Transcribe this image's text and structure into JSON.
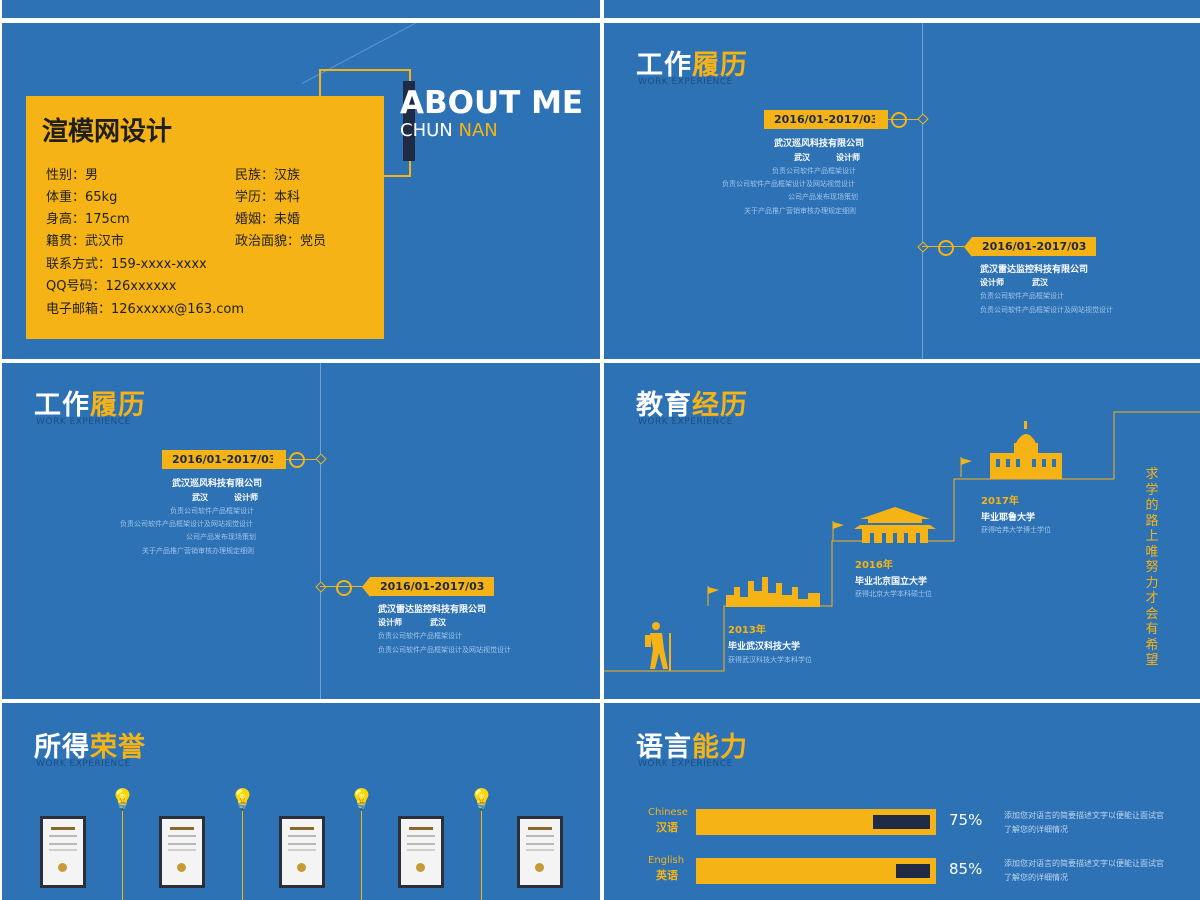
{
  "about": {
    "name": "渲模网设计",
    "heading": "ABOUT ME",
    "sub_first": "CHUN",
    "sub_last": "NAN",
    "left_fields": [
      "性别：男",
      "体重：65kg",
      "身高：175cm",
      "籍贯：武汉市",
      "联系方式：159-xxxx-xxxx",
      "QQ号码：126xxxxxx",
      "电子邮箱：126xxxxx@163.com"
    ],
    "right_fields": [
      "民族：汉族",
      "学历：本科",
      "婚姻：未婚",
      "政治面貌：党员"
    ]
  },
  "work": {
    "title_a": "工作",
    "title_b": "履历",
    "subtitle": "WORK EXPERIENCE",
    "entries": [
      {
        "date": "2016/01-2017/03",
        "company": "武汉巡风科技有限公司",
        "city": "武汉",
        "role": "设计师",
        "lines": [
          "负责公司软件产品框架设计",
          "负责公司软件产品框架设计及网站视觉设计",
          "公司产品发布现场策划",
          "关于产品推广营销审核办理规定细则"
        ]
      },
      {
        "date": "2016/01-2017/03",
        "company": "武汉雷达监控科技有限公司",
        "city": "武汉",
        "role": "设计师",
        "lines": [
          "负责公司软件产品框架设计",
          "负责公司软件产品框架设计及网站视觉设计"
        ]
      }
    ]
  },
  "education": {
    "title_a": "教育",
    "title_b": "经历",
    "subtitle": "WORK EXPERIENCE",
    "motto": "求学的路上唯努力才会有希望",
    "steps": [
      {
        "year": "2013年",
        "school": "毕业武汉科技大学",
        "desc": "获得武汉科技大学本科学位"
      },
      {
        "year": "2016年",
        "school": "毕业北京国立大学",
        "desc": "获得北京大学本科硕士位"
      },
      {
        "year": "2017年",
        "school": "毕业耶鲁大学",
        "desc": "获得哈弗大学博士学位"
      }
    ]
  },
  "honors": {
    "title_a": "所得",
    "title_b": "荣誉",
    "subtitle": "WORK EXPERIENCE",
    "cert_count": 5
  },
  "language": {
    "title_a": "语言",
    "title_b": "能力",
    "subtitle": "WORK EXPERIENCE",
    "items": [
      {
        "en": "Chinese",
        "cn": "汉语",
        "level": 0.75,
        "pct": "75%",
        "desc": "添加您对语言的简要描述文字以便能让面试官了解您的详细情况"
      },
      {
        "en": "English",
        "cn": "英语",
        "level": 0.85,
        "pct": "85%",
        "desc": "添加您对语言的简要描述文字以便能让面试官了解您的详细情况"
      }
    ]
  },
  "colors": {
    "accent": "#f5b316",
    "background": "#2e72b6",
    "dark": "#1f2a44"
  }
}
